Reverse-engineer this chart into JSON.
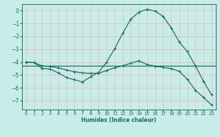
{
  "xlabel": "Humidex (Indice chaleur)",
  "background_color": "#c8ece8",
  "grid_color": "#e8b8b8",
  "line_color": "#1a6b60",
  "spine_color": "#1a6b60",
  "xlim": [
    -0.5,
    23.5
  ],
  "ylim": [
    -7.7,
    0.5
  ],
  "x_ticks": [
    0,
    1,
    2,
    3,
    4,
    5,
    6,
    7,
    8,
    9,
    10,
    11,
    12,
    13,
    14,
    15,
    16,
    17,
    18,
    19,
    20,
    21,
    22,
    23
  ],
  "y_ticks": [
    0,
    -1,
    -2,
    -3,
    -4,
    -5,
    -6,
    -7
  ],
  "line1_x": [
    0,
    1,
    2,
    3,
    4,
    5,
    6,
    7,
    8,
    9,
    10,
    11,
    12,
    13,
    14,
    15,
    16,
    17,
    18,
    19,
    20,
    21,
    22,
    23
  ],
  "line1_y": [
    -4.0,
    -4.05,
    -4.5,
    -4.55,
    -4.85,
    -5.2,
    -5.38,
    -5.55,
    -5.15,
    -4.8,
    -4.0,
    -2.95,
    -1.75,
    -0.65,
    -0.12,
    0.1,
    -0.05,
    -0.45,
    -1.35,
    -2.45,
    -3.2,
    -4.3,
    -5.5,
    -6.55
  ],
  "line2_x": [
    0,
    1,
    2,
    3,
    4,
    5,
    6,
    7,
    8,
    9,
    10,
    11,
    12,
    13,
    14,
    15,
    16,
    17,
    18,
    19,
    20,
    21,
    22,
    23
  ],
  "line2_y": [
    -4.0,
    -4.05,
    -4.3,
    -4.35,
    -4.45,
    -4.62,
    -4.75,
    -4.85,
    -4.88,
    -4.88,
    -4.65,
    -4.45,
    -4.28,
    -4.1,
    -3.9,
    -4.2,
    -4.32,
    -4.42,
    -4.52,
    -4.72,
    -5.35,
    -6.2,
    -6.75,
    -7.35
  ],
  "line3_y": -4.3
}
